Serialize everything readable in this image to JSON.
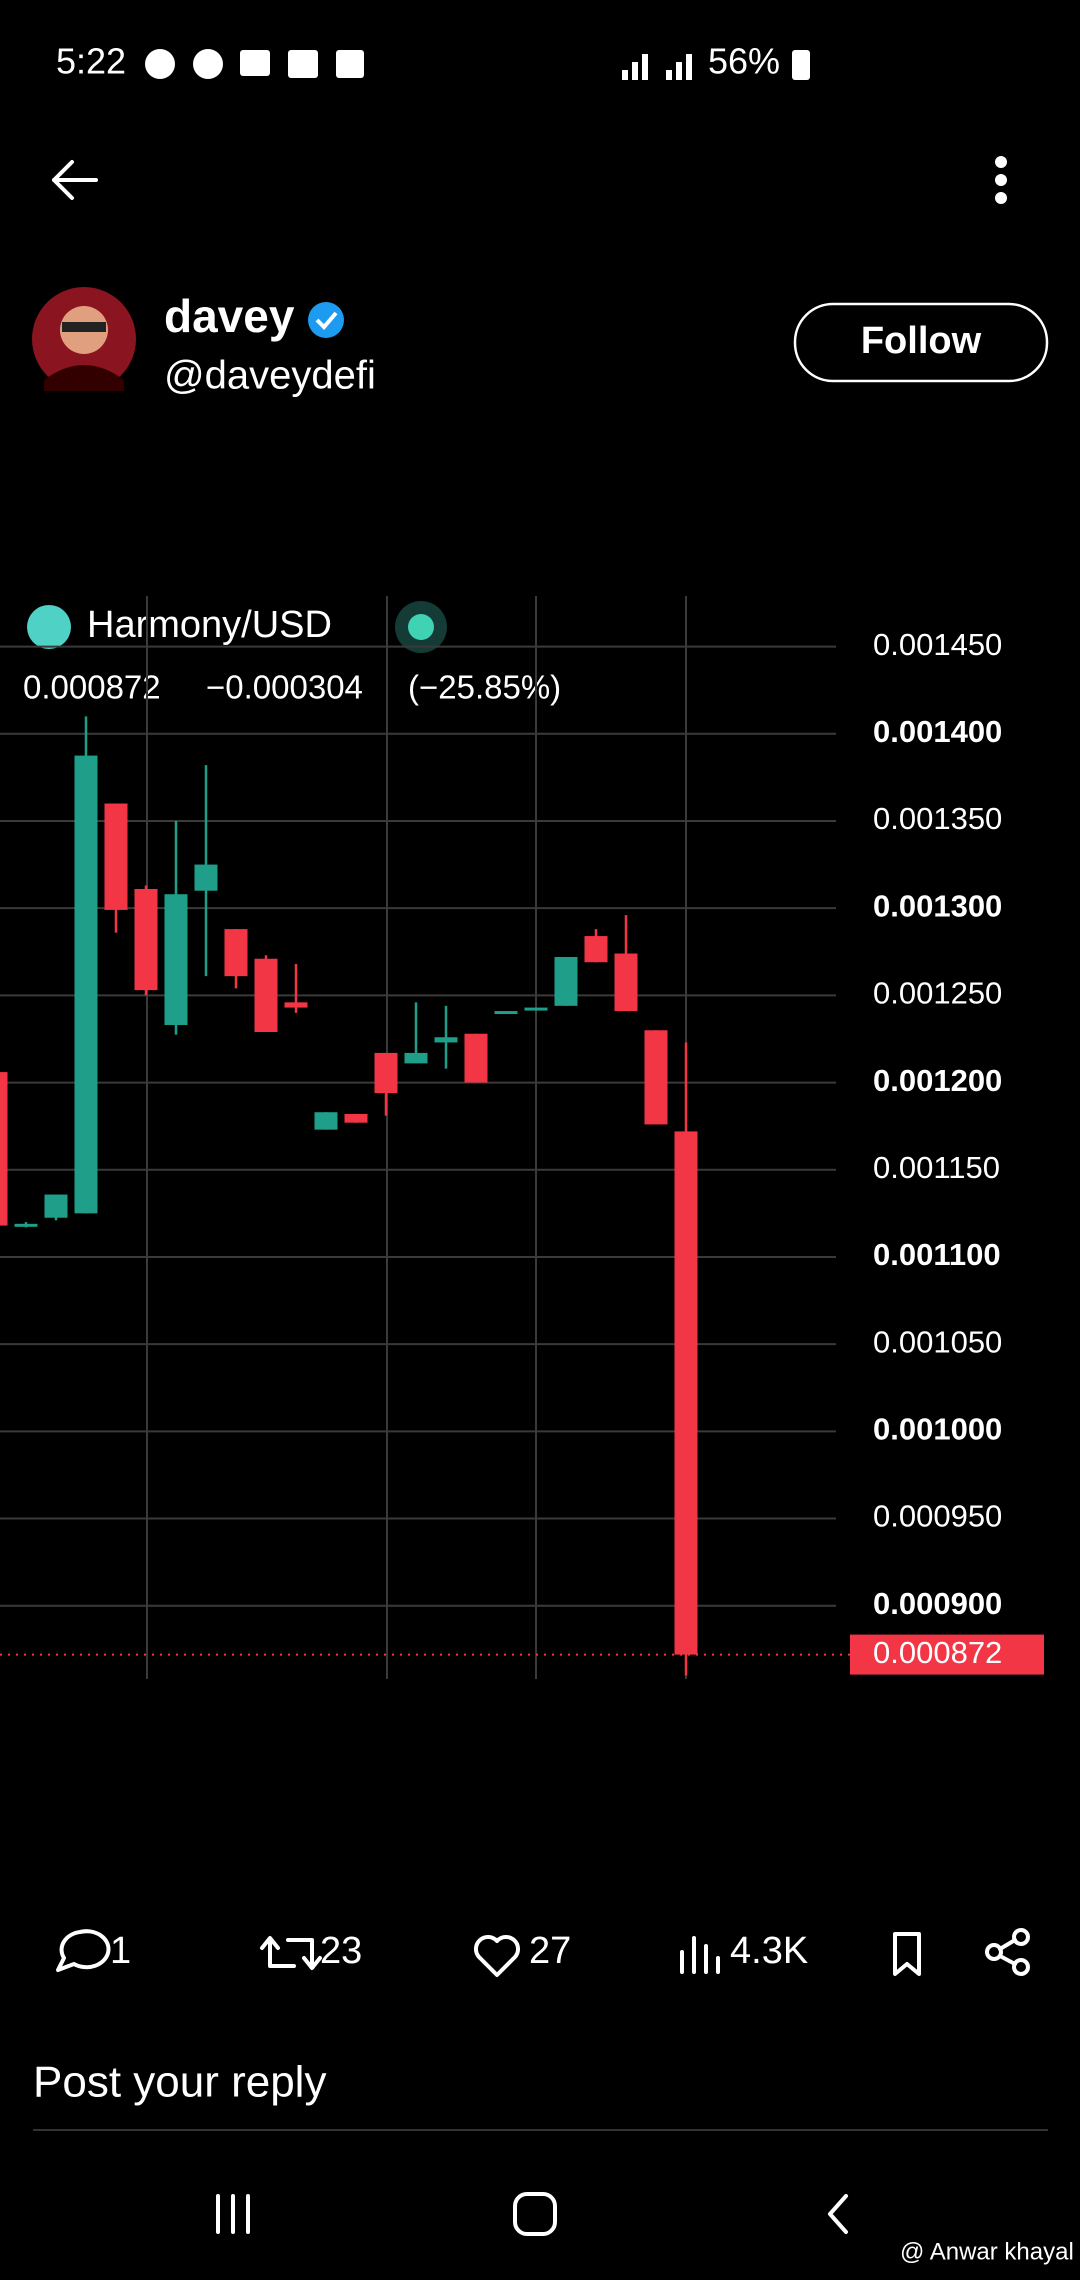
{
  "status_bar": {
    "time": "5:22",
    "battery": "56%"
  },
  "post": {
    "author": {
      "name": "davey",
      "handle": "@daveydefi"
    },
    "follow": "Follow"
  },
  "chart_data": {
    "type": "candlestick",
    "title": "Harmony/USD",
    "quote": "0.000872",
    "change": "−0.000304",
    "change_pct": "(−25.85%)",
    "up_color": "#1f9e89",
    "down_color": "#f23645",
    "open": [
      0.001206,
      0.001118,
      0.0011225,
      0.001125,
      0.00136,
      0.001311,
      0.001233,
      0.00131,
      0.001288,
      0.001271,
      0.001246,
      0.001173,
      0.001182,
      0.001217,
      0.001211,
      0.001223,
      0.001228,
      0.00124,
      0.001242,
      0.001244,
      0.001284,
      0.001274,
      0.00123,
      0.001172
    ],
    "high": [
      0.001206,
      0.00112,
      0.0011358,
      0.00141,
      0.00136,
      0.001313,
      0.00135,
      0.001382,
      0.001288,
      0.001273,
      0.001268,
      0.001183,
      0.001182,
      0.001217,
      0.001246,
      0.001244,
      0.001228,
      0.001241,
      0.001243,
      0.001272,
      0.001288,
      0.001296,
      0.00123,
      0.001223
    ],
    "low": [
      0.001118,
      0.001117,
      0.001121,
      0.001125,
      0.001286,
      0.00125,
      0.0012275,
      0.001261,
      0.001254,
      0.001229,
      0.00124,
      0.001173,
      0.001177,
      0.001181,
      0.001211,
      0.001208,
      0.0012,
      0.00124,
      0.001242,
      0.001244,
      0.001269,
      0.001241,
      0.001176,
      0.00086
    ],
    "close": [
      0.001118,
      0.001119,
      0.0011358,
      0.0013875,
      0.001299,
      0.001253,
      0.001308,
      0.001325,
      0.001261,
      0.001229,
      0.001243,
      0.001183,
      0.001177,
      0.001194,
      0.001217,
      0.001226,
      0.0012,
      0.001241,
      0.001243,
      0.001272,
      0.001269,
      0.001241,
      0.001176,
      0.000872
    ],
    "last_price": 0.000872,
    "ylim": [
      0.000858,
      0.001479
    ],
    "yticks": [
      {
        "value": 0.00145,
        "label": "0.001450"
      },
      {
        "value": 0.0014,
        "label": "0.001400"
      },
      {
        "value": 0.00135,
        "label": "0.001350"
      },
      {
        "value": 0.0013,
        "label": "0.001300"
      },
      {
        "value": 0.00125,
        "label": "0.001250"
      },
      {
        "value": 0.0012,
        "label": "0.001200"
      },
      {
        "value": 0.00115,
        "label": "0.001150"
      },
      {
        "value": 0.0011,
        "label": "0.001100"
      },
      {
        "value": 0.00105,
        "label": "0.001050"
      },
      {
        "value": 0.001,
        "label": "0.001000"
      },
      {
        "value": 0.00095,
        "label": "0.000950"
      },
      {
        "value": 0.0009,
        "label": "0.000900"
      }
    ],
    "grid": true
  },
  "actions": {
    "replies": "1",
    "reposts": "23",
    "likes": "27",
    "views": "4.3K"
  },
  "reply_placeholder": "Post your reply",
  "watermark": "@ Anwar khayal"
}
